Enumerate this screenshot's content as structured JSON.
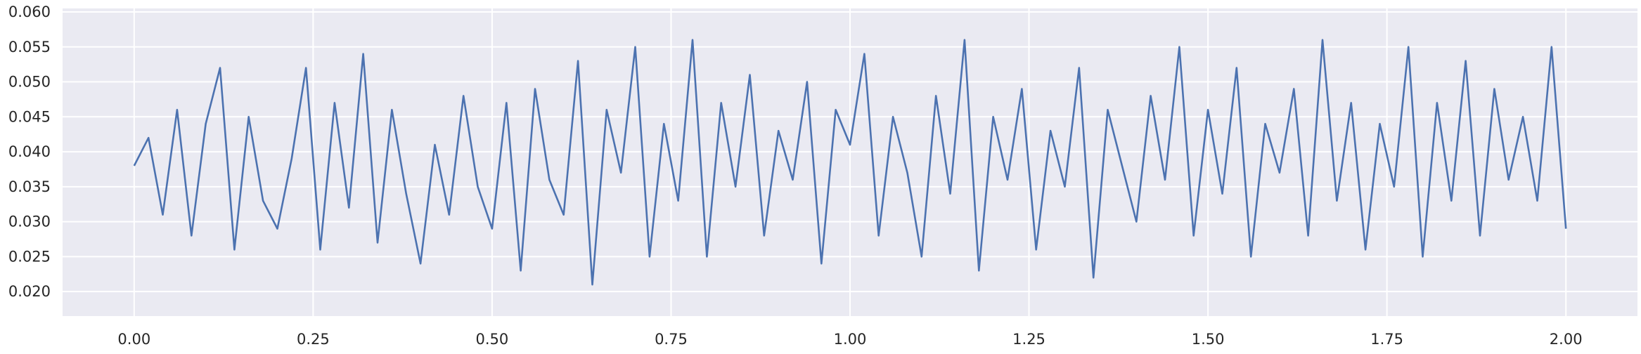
{
  "chart_data": {
    "type": "line",
    "title": "",
    "xlabel": "",
    "ylabel": "",
    "grid": true,
    "legend": "none",
    "xlim": [
      -0.1,
      2.1
    ],
    "ylim": [
      0.0165,
      0.0605
    ],
    "xticks": [
      {
        "value": 0.0,
        "label": "0.00"
      },
      {
        "value": 0.25,
        "label": "0.25"
      },
      {
        "value": 0.5,
        "label": "0.50"
      },
      {
        "value": 0.75,
        "label": "0.75"
      },
      {
        "value": 1.0,
        "label": "1.00"
      },
      {
        "value": 1.25,
        "label": "1.25"
      },
      {
        "value": 1.5,
        "label": "1.50"
      },
      {
        "value": 1.75,
        "label": "1.75"
      },
      {
        "value": 2.0,
        "label": "2.00"
      }
    ],
    "yticks": [
      {
        "value": 0.02,
        "label": "0.020"
      },
      {
        "value": 0.025,
        "label": "0.025"
      },
      {
        "value": 0.03,
        "label": "0.030"
      },
      {
        "value": 0.035,
        "label": "0.035"
      },
      {
        "value": 0.04,
        "label": "0.040"
      },
      {
        "value": 0.045,
        "label": "0.045"
      },
      {
        "value": 0.05,
        "label": "0.050"
      },
      {
        "value": 0.055,
        "label": "0.055"
      },
      {
        "value": 0.06,
        "label": "0.060"
      }
    ],
    "series": [
      {
        "color": "#4c72b0",
        "x": [
          0.0,
          0.02,
          0.04,
          0.06,
          0.08,
          0.1,
          0.12,
          0.14,
          0.16,
          0.18,
          0.2,
          0.22,
          0.24,
          0.26,
          0.28,
          0.3,
          0.32,
          0.34,
          0.36,
          0.38,
          0.4,
          0.42,
          0.44,
          0.46,
          0.48,
          0.5,
          0.52,
          0.54,
          0.56,
          0.58,
          0.6,
          0.62,
          0.64,
          0.66,
          0.68,
          0.7,
          0.72,
          0.74,
          0.76,
          0.78,
          0.8,
          0.82,
          0.84,
          0.86,
          0.88,
          0.9,
          0.92,
          0.94,
          0.96,
          0.98,
          1.0,
          1.02,
          1.04,
          1.06,
          1.08,
          1.1,
          1.12,
          1.14,
          1.16,
          1.18,
          1.2,
          1.22,
          1.24,
          1.26,
          1.28,
          1.3,
          1.32,
          1.34,
          1.36,
          1.38,
          1.4,
          1.42,
          1.44,
          1.46,
          1.48,
          1.5,
          1.52,
          1.54,
          1.56,
          1.58,
          1.6,
          1.62,
          1.64,
          1.66,
          1.68,
          1.7,
          1.72,
          1.74,
          1.76,
          1.78,
          1.8,
          1.82,
          1.84,
          1.86,
          1.88,
          1.9,
          1.92,
          1.94,
          1.96,
          1.98,
          2.0
        ],
        "y": [
          0.038,
          0.042,
          0.031,
          0.046,
          0.028,
          0.044,
          0.052,
          0.026,
          0.045,
          0.033,
          0.029,
          0.039,
          0.052,
          0.026,
          0.047,
          0.032,
          0.054,
          0.027,
          0.046,
          0.034,
          0.024,
          0.041,
          0.031,
          0.048,
          0.035,
          0.029,
          0.047,
          0.023,
          0.049,
          0.036,
          0.031,
          0.053,
          0.021,
          0.046,
          0.037,
          0.055,
          0.025,
          0.044,
          0.033,
          0.056,
          0.025,
          0.047,
          0.035,
          0.051,
          0.028,
          0.043,
          0.036,
          0.05,
          0.024,
          0.046,
          0.041,
          0.054,
          0.028,
          0.045,
          0.037,
          0.025,
          0.048,
          0.034,
          0.056,
          0.023,
          0.045,
          0.036,
          0.049,
          0.026,
          0.043,
          0.035,
          0.052,
          0.022,
          0.046,
          0.038,
          0.03,
          0.048,
          0.036,
          0.055,
          0.028,
          0.046,
          0.034,
          0.052,
          0.025,
          0.044,
          0.037,
          0.049,
          0.028,
          0.056,
          0.033,
          0.047,
          0.026,
          0.044,
          0.035,
          0.055,
          0.025,
          0.047,
          0.033,
          0.053,
          0.028,
          0.049,
          0.036,
          0.045,
          0.033,
          0.055,
          0.029
        ]
      }
    ]
  }
}
